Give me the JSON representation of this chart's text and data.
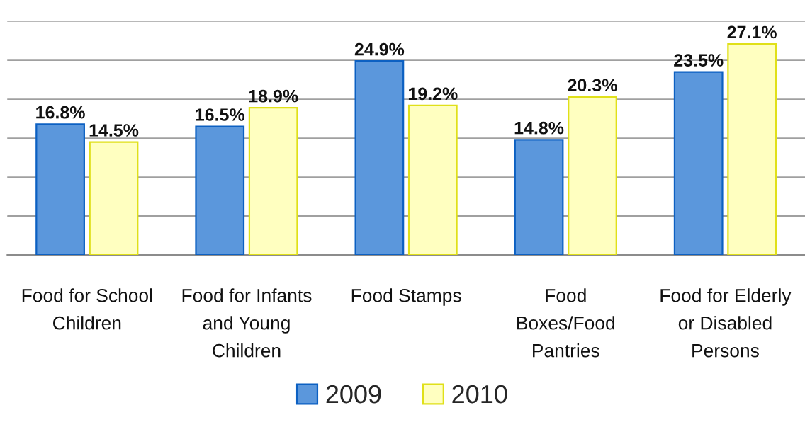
{
  "chart_data": {
    "type": "bar",
    "categories": [
      "Food for School\nChildren",
      "Food for Infants\nand Young\nChildren",
      "Food Stamps",
      "Food\nBoxes/Food\nPantries",
      "Food for Elderly\nor Disabled\nPersons"
    ],
    "series": [
      {
        "name": "2009",
        "color": "#5b97dc",
        "values": [
          16.8,
          16.5,
          24.9,
          14.8,
          23.5
        ],
        "value_labels": [
          "16.8%",
          "16.5%",
          "24.9%",
          "14.8%",
          "23.5%"
        ]
      },
      {
        "name": "2010",
        "color": "#ffffc0",
        "values": [
          14.5,
          18.9,
          19.2,
          20.3,
          27.1
        ],
        "value_labels": [
          "14.5%",
          "18.9%",
          "19.2%",
          "20.3%",
          "27.1%"
        ]
      }
    ],
    "ylim": [
      0,
      30
    ],
    "yticks": [
      {
        "value": 0,
        "label": null
      },
      {
        "value": 5,
        "label": null
      },
      {
        "value": 10,
        "label": null
      },
      {
        "value": 15,
        "label": null
      },
      {
        "value": 20,
        "label": null
      },
      {
        "value": 25,
        "label": null
      },
      {
        "value": 30,
        "label": null
      }
    ],
    "tick_labels": "x",
    "grid": "y",
    "legend": "bottom"
  }
}
